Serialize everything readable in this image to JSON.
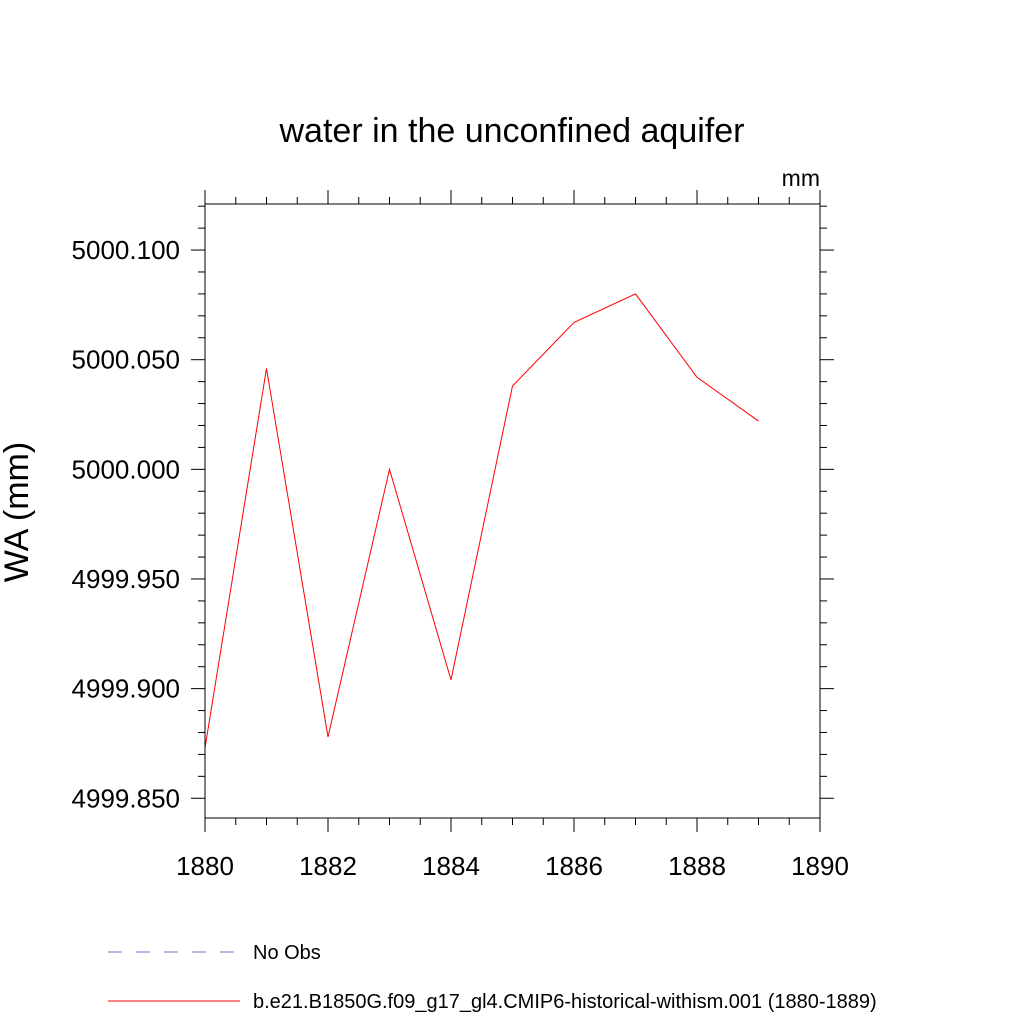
{
  "chart_data": {
    "type": "line",
    "title": "water in the unconfined aquifer",
    "units_label": "mm",
    "xlabel": "",
    "ylabel": "WA  (mm)",
    "xlim": [
      1880,
      1890
    ],
    "ylim": [
      4999.841,
      5000.121
    ],
    "x_ticks": [
      1880,
      1882,
      1884,
      1886,
      1888,
      1890
    ],
    "x_tick_labels": [
      "1880",
      "1882",
      "1884",
      "1886",
      "1888",
      "1890"
    ],
    "y_ticks": [
      4999.85,
      4999.9,
      4999.95,
      5000.0,
      5000.05,
      5000.1
    ],
    "y_tick_labels": [
      "4999.850",
      "4999.900",
      "4999.950",
      "5000.000",
      "5000.050",
      "5000.100"
    ],
    "x_minor_step": 0.5,
    "y_minor_step": 0.01,
    "grid": false,
    "legend_position": "bottom-left",
    "series": [
      {
        "name": "No Obs",
        "color": "#7b68c8",
        "dash": "dashed",
        "x": [],
        "values": []
      },
      {
        "name": "b.e21.B1850G.f09_g17_gl4.CMIP6-historical-withism.001 (1880-1889)",
        "color": "#ff0000",
        "dash": "solid",
        "x": [
          1880,
          1881,
          1882,
          1883,
          1884,
          1885,
          1886,
          1887,
          1888,
          1889
        ],
        "values": [
          4999.873,
          5000.046,
          4999.878,
          5000.0,
          4999.904,
          5000.038,
          5000.067,
          5000.08,
          5000.042,
          5000.022
        ]
      }
    ]
  }
}
